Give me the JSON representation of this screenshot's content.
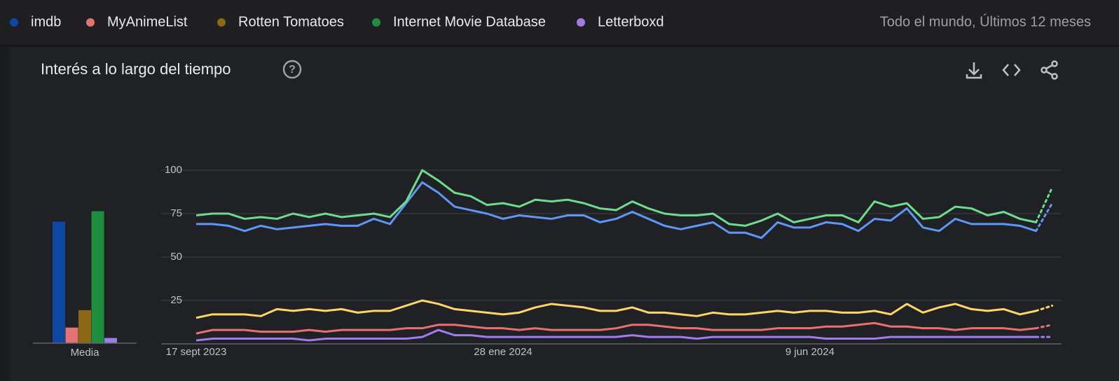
{
  "header": {
    "terms": [
      "imdb",
      "MyAnimeList",
      "Rotten Tomatoes",
      "Internet Movie Database",
      "Letterboxd"
    ],
    "scope": "Todo el mundo, Últimos 12 meses"
  },
  "panel": {
    "title": "Interés a lo largo del tiempo"
  },
  "chart_data": [
    {
      "type": "line",
      "categories": [
        "17 sept 2023",
        null,
        null,
        null,
        null,
        null,
        null,
        null,
        null,
        null,
        null,
        null,
        null,
        null,
        null,
        null,
        null,
        null,
        null,
        "28 ene 2024",
        null,
        null,
        null,
        null,
        null,
        null,
        null,
        null,
        null,
        null,
        null,
        null,
        null,
        null,
        null,
        null,
        null,
        null,
        "9 jun 2024",
        null,
        null,
        null,
        null,
        null,
        null,
        null,
        null,
        null,
        null,
        null,
        null,
        null,
        null,
        null
      ],
      "ylim": [
        0,
        100
      ],
      "yticks": [
        25,
        50,
        75,
        100
      ],
      "grid": true,
      "series": [
        {
          "name": "imdb",
          "color": "#5e97f6",
          "values": [
            69,
            69,
            68,
            65,
            68,
            66,
            67,
            68,
            69,
            68,
            68,
            72,
            69,
            81,
            93,
            87,
            79,
            77,
            75,
            72,
            74,
            73,
            72,
            74,
            74,
            70,
            72,
            76,
            72,
            68,
            66,
            68,
            70,
            64,
            64,
            61,
            70,
            67,
            67,
            70,
            69,
            65,
            72,
            71,
            78,
            67,
            65,
            72,
            69,
            69,
            69,
            68,
            65,
            81
          ]
        },
        {
          "name": "MyAnimeList",
          "color": "#ea7070",
          "values": [
            6,
            8,
            8,
            8,
            7,
            7,
            7,
            8,
            7,
            8,
            8,
            8,
            8,
            9,
            9,
            11,
            11,
            10,
            9,
            9,
            8,
            9,
            8,
            8,
            8,
            8,
            9,
            11,
            11,
            10,
            9,
            9,
            8,
            8,
            8,
            8,
            9,
            9,
            9,
            10,
            10,
            11,
            12,
            10,
            10,
            9,
            9,
            8,
            9,
            9,
            9,
            8,
            9,
            11
          ]
        },
        {
          "name": "Rotten Tomatoes",
          "color": "#fdd663",
          "values": [
            15,
            17,
            17,
            17,
            16,
            20,
            19,
            20,
            19,
            20,
            18,
            19,
            19,
            22,
            25,
            23,
            20,
            19,
            18,
            17,
            18,
            21,
            23,
            22,
            21,
            19,
            19,
            21,
            18,
            18,
            17,
            16,
            18,
            17,
            17,
            18,
            19,
            18,
            19,
            19,
            18,
            18,
            19,
            17,
            23,
            18,
            21,
            23,
            20,
            19,
            20,
            17,
            19,
            22
          ]
        },
        {
          "name": "Internet Movie Database",
          "color": "#6bdd8c",
          "values": [
            74,
            75,
            75,
            72,
            73,
            72,
            75,
            73,
            75,
            73,
            74,
            75,
            73,
            82,
            100,
            94,
            87,
            85,
            80,
            81,
            79,
            83,
            82,
            83,
            81,
            78,
            77,
            82,
            78,
            75,
            74,
            74,
            75,
            69,
            68,
            71,
            75,
            70,
            72,
            74,
            74,
            70,
            82,
            79,
            81,
            72,
            73,
            79,
            78,
            74,
            76,
            72,
            70,
            90
          ]
        },
        {
          "name": "Letterboxd",
          "color": "#a37bf0",
          "values": [
            2,
            3,
            3,
            3,
            3,
            3,
            3,
            2,
            3,
            3,
            3,
            3,
            3,
            3,
            4,
            8,
            5,
            5,
            4,
            4,
            4,
            4,
            4,
            4,
            4,
            4,
            4,
            5,
            4,
            4,
            4,
            3,
            4,
            4,
            4,
            4,
            4,
            4,
            4,
            3,
            3,
            3,
            3,
            4,
            4,
            4,
            4,
            4,
            4,
            4,
            4,
            4,
            4,
            4
          ]
        }
      ]
    },
    {
      "type": "bar",
      "xlabel": "Media",
      "ylim": [
        0,
        100
      ],
      "values": [
        70,
        9,
        19,
        76,
        3
      ],
      "colors": [
        "#0d47a1",
        "#e57373",
        "#8b6914",
        "#1e8e3e",
        "#9c7ce8"
      ]
    }
  ]
}
